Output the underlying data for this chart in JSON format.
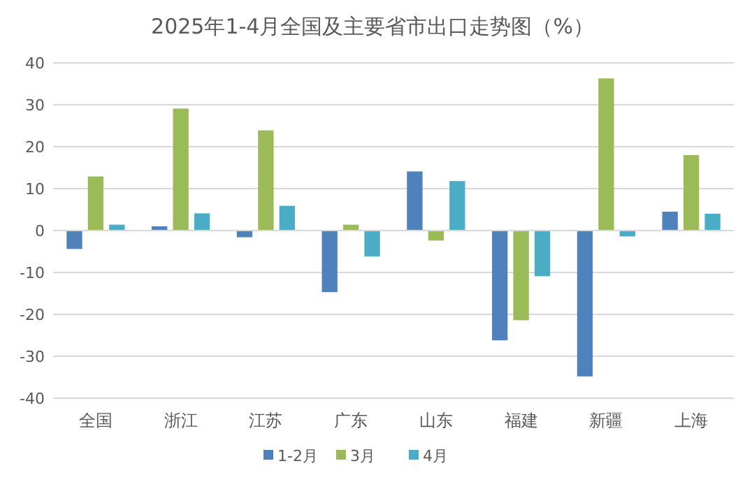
{
  "chart_data": {
    "type": "bar",
    "title": "2025年1-4月全国及主要省市出口走势图（%）",
    "categories": [
      "全国",
      "浙江",
      "江苏",
      "广东",
      "山东",
      "福建",
      "新疆",
      "上海"
    ],
    "series": [
      {
        "name": "1-2月",
        "color": "#4f81bd",
        "values": [
          -4.4,
          1.0,
          -1.6,
          -14.7,
          14.1,
          -26.2,
          -34.8,
          4.5
        ]
      },
      {
        "name": "3月",
        "color": "#9bbb59",
        "values": [
          12.9,
          29.1,
          23.9,
          1.4,
          -2.4,
          -21.4,
          36.3,
          18.0
        ]
      },
      {
        "name": "4月",
        "color": "#4bacc6",
        "values": [
          1.4,
          4.1,
          5.9,
          -6.2,
          11.8,
          -10.9,
          -1.4,
          4.0
        ]
      }
    ],
    "ylim": [
      -40,
      40
    ],
    "yticks": [
      -40,
      -30,
      -20,
      -10,
      0,
      10,
      20,
      30,
      40
    ],
    "grid": "y",
    "legend": "bottom"
  }
}
